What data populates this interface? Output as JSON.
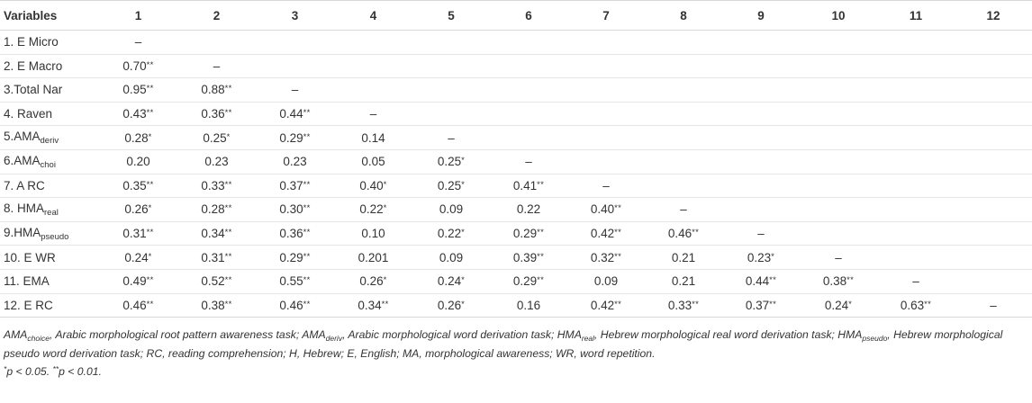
{
  "table": {
    "header": [
      "Variables",
      "1",
      "2",
      "3",
      "4",
      "5",
      "6",
      "7",
      "8",
      "9",
      "10",
      "11",
      "12"
    ],
    "rows": [
      {
        "label": "1. E Micro",
        "cells": [
          [
            "–",
            ""
          ],
          [
            "",
            ""
          ],
          [
            "",
            ""
          ],
          [
            "",
            ""
          ],
          [
            "",
            ""
          ],
          [
            "",
            ""
          ],
          [
            "",
            ""
          ],
          [
            "",
            ""
          ],
          [
            "",
            ""
          ],
          [
            "",
            ""
          ],
          [
            "",
            ""
          ],
          [
            "",
            ""
          ]
        ]
      },
      {
        "label": "2. E Macro",
        "cells": [
          [
            "0.70",
            "**"
          ],
          [
            "–",
            ""
          ],
          [
            "",
            ""
          ],
          [
            "",
            ""
          ],
          [
            "",
            ""
          ],
          [
            "",
            ""
          ],
          [
            "",
            ""
          ],
          [
            "",
            ""
          ],
          [
            "",
            ""
          ],
          [
            "",
            ""
          ],
          [
            "",
            ""
          ],
          [
            "",
            ""
          ]
        ]
      },
      {
        "label": "3.Total Nar",
        "cells": [
          [
            "0.95",
            "**"
          ],
          [
            "0.88",
            "**"
          ],
          [
            "–",
            ""
          ],
          [
            "",
            ""
          ],
          [
            "",
            ""
          ],
          [
            "",
            ""
          ],
          [
            "",
            ""
          ],
          [
            "",
            ""
          ],
          [
            "",
            ""
          ],
          [
            "",
            ""
          ],
          [
            "",
            ""
          ],
          [
            "",
            ""
          ]
        ]
      },
      {
        "label": "4. Raven",
        "cells": [
          [
            "0.43",
            "**"
          ],
          [
            "0.36",
            "**"
          ],
          [
            "0.44",
            "**"
          ],
          [
            "–",
            ""
          ],
          [
            "",
            ""
          ],
          [
            "",
            ""
          ],
          [
            "",
            ""
          ],
          [
            "",
            ""
          ],
          [
            "",
            ""
          ],
          [
            "",
            ""
          ],
          [
            "",
            ""
          ],
          [
            "",
            ""
          ]
        ]
      },
      {
        "label": "5.AMA",
        "label_sub": "deriv",
        "cells": [
          [
            "0.28",
            "*"
          ],
          [
            "0.25",
            "*"
          ],
          [
            "0.29",
            "**"
          ],
          [
            "0.14",
            ""
          ],
          [
            "–",
            ""
          ],
          [
            "",
            ""
          ],
          [
            "",
            ""
          ],
          [
            "",
            ""
          ],
          [
            "",
            ""
          ],
          [
            "",
            ""
          ],
          [
            "",
            ""
          ],
          [
            "",
            ""
          ]
        ]
      },
      {
        "label": "6.AMA",
        "label_sub": "choi",
        "cells": [
          [
            "0.20",
            ""
          ],
          [
            "0.23",
            ""
          ],
          [
            "0.23",
            ""
          ],
          [
            "0.05",
            ""
          ],
          [
            "0.25",
            "*"
          ],
          [
            "–",
            ""
          ],
          [
            "",
            ""
          ],
          [
            "",
            ""
          ],
          [
            "",
            ""
          ],
          [
            "",
            ""
          ],
          [
            "",
            ""
          ],
          [
            "",
            ""
          ]
        ]
      },
      {
        "label": "7. A RC",
        "cells": [
          [
            "0.35",
            "**"
          ],
          [
            "0.33",
            "**"
          ],
          [
            "0.37",
            "**"
          ],
          [
            "0.40",
            "*"
          ],
          [
            "0.25",
            "*"
          ],
          [
            "0.41",
            "**"
          ],
          [
            "–",
            ""
          ],
          [
            "",
            ""
          ],
          [
            "",
            ""
          ],
          [
            "",
            ""
          ],
          [
            "",
            ""
          ],
          [
            "",
            ""
          ]
        ]
      },
      {
        "label": "8. HMA",
        "label_sub": "real",
        "cells": [
          [
            "0.26",
            "*"
          ],
          [
            "0.28",
            "**"
          ],
          [
            "0.30",
            "**"
          ],
          [
            "0.22",
            "*"
          ],
          [
            "0.09",
            ""
          ],
          [
            "0.22",
            ""
          ],
          [
            "0.40",
            "**"
          ],
          [
            "–",
            ""
          ],
          [
            "",
            ""
          ],
          [
            "",
            ""
          ],
          [
            "",
            ""
          ],
          [
            "",
            ""
          ]
        ]
      },
      {
        "label": "9.HMA",
        "label_sub": "pseudo",
        "cells": [
          [
            "0.31",
            "**"
          ],
          [
            "0.34",
            "**"
          ],
          [
            "0.36",
            "**"
          ],
          [
            "0.10",
            ""
          ],
          [
            "0.22",
            "*"
          ],
          [
            "0.29",
            "**"
          ],
          [
            "0.42",
            "**"
          ],
          [
            "0.46",
            "**"
          ],
          [
            "–",
            ""
          ],
          [
            "",
            ""
          ],
          [
            "",
            ""
          ],
          [
            "",
            ""
          ]
        ]
      },
      {
        "label": "10. E WR",
        "cells": [
          [
            "0.24",
            "*"
          ],
          [
            "0.31",
            "**"
          ],
          [
            "0.29",
            "**"
          ],
          [
            "0.201",
            ""
          ],
          [
            "0.09",
            ""
          ],
          [
            "0.39",
            "**"
          ],
          [
            "0.32",
            "**"
          ],
          [
            "0.21",
            ""
          ],
          [
            "0.23",
            "*"
          ],
          [
            "–",
            ""
          ],
          [
            "",
            ""
          ],
          [
            "",
            ""
          ]
        ]
      },
      {
        "label": "11. EMA",
        "cells": [
          [
            "0.49",
            "**"
          ],
          [
            "0.52",
            "**"
          ],
          [
            "0.55",
            "**"
          ],
          [
            "0.26",
            "*"
          ],
          [
            "0.24",
            "*"
          ],
          [
            "0.29",
            "**"
          ],
          [
            "0.09",
            ""
          ],
          [
            "0.21",
            ""
          ],
          [
            "0.44",
            "**"
          ],
          [
            "0.38",
            "**"
          ],
          [
            "–",
            ""
          ],
          [
            "",
            ""
          ]
        ]
      },
      {
        "label": "12. E RC",
        "cells": [
          [
            "0.46",
            "**"
          ],
          [
            "0.38",
            "**"
          ],
          [
            "0.46",
            "**"
          ],
          [
            "0.34",
            "**"
          ],
          [
            "0.26",
            "*"
          ],
          [
            "0.16",
            ""
          ],
          [
            "0.42",
            "**"
          ],
          [
            "0.33",
            "**"
          ],
          [
            "0.37",
            "**"
          ],
          [
            "0.24",
            "*"
          ],
          [
            "0.63",
            "**"
          ],
          [
            "–",
            ""
          ]
        ]
      }
    ]
  },
  "footnote": {
    "segments": [
      {
        "t": "AMA"
      },
      {
        "sub": "choice"
      },
      {
        "t": ", Arabic morphological root pattern awareness task; AMA"
      },
      {
        "sub": "deriv"
      },
      {
        "t": ", Arabic morphological word derivation task; HMA"
      },
      {
        "sub": "real"
      },
      {
        "t": ", Hebrew morphological real word derivation task; HMA"
      },
      {
        "sub": "pseudo"
      },
      {
        "t": ", Hebrew morphological pseudo word derivation task; RC, reading comprehension; H, Hebrew; E, English; MA, morphological awareness; WR, word repetition."
      }
    ],
    "sig_segments": [
      {
        "sup": "*"
      },
      {
        "t": "p < 0.05. "
      },
      {
        "sup": "**"
      },
      {
        "t": "p < 0.01."
      }
    ]
  }
}
